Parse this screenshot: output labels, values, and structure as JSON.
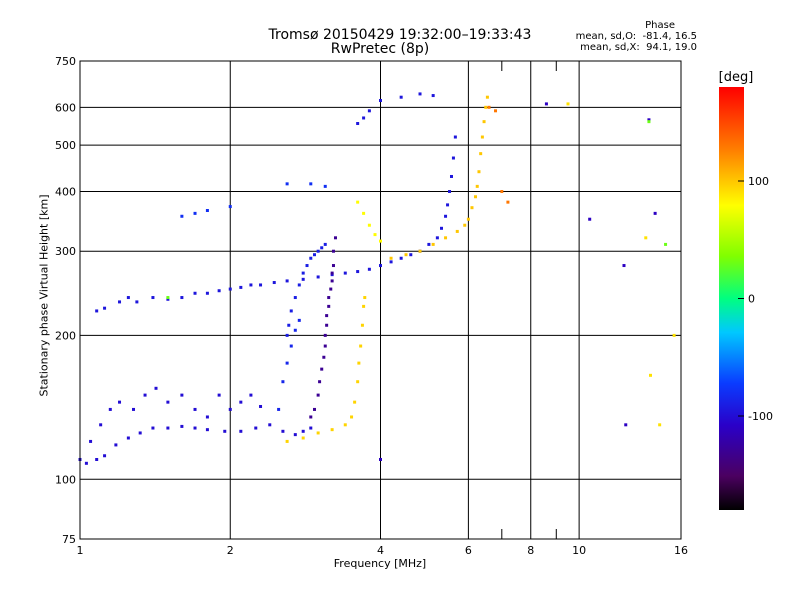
{
  "chart_data": {
    "type": "scatter",
    "title": "Tromsø 20150429 19:32:00–19:33:43",
    "subtitle": "RwPretec (8p)",
    "xlabel": "Frequency [MHz]",
    "ylabel": "Stationary phase Virtual Height [km]",
    "x_scale": "log",
    "y_scale": "log",
    "xlim": [
      1,
      16
    ],
    "ylim": [
      75,
      750
    ],
    "x_ticks": [
      1,
      2,
      4,
      6,
      8,
      10,
      16
    ],
    "y_ticks": [
      75,
      100,
      200,
      300,
      400,
      500,
      600,
      750
    ],
    "grid": true,
    "stats": {
      "heading": "Phase",
      "line_o": "mean, sd,O:  -81.4, 16.5",
      "line_x": "mean, sd,X:  94.1, 19.0"
    },
    "colorbar": {
      "label": "[deg]",
      "range": [
        -180,
        180
      ],
      "ticks": [
        {
          "value": 100,
          "label": "100"
        },
        {
          "value": 0,
          "label": "0"
        },
        {
          "value": -100,
          "label": "-100"
        }
      ]
    },
    "series": [
      {
        "phase": -100,
        "points": [
          [
            1.0,
            110
          ],
          [
            1.03,
            108
          ],
          [
            1.08,
            110
          ],
          [
            1.12,
            112
          ],
          [
            1.18,
            118
          ],
          [
            1.25,
            122
          ],
          [
            1.32,
            125
          ],
          [
            1.4,
            128
          ],
          [
            1.5,
            128
          ],
          [
            1.6,
            129
          ],
          [
            1.7,
            128
          ],
          [
            1.8,
            127
          ],
          [
            1.95,
            126
          ],
          [
            2.1,
            126
          ],
          [
            2.25,
            128
          ],
          [
            2.4,
            130
          ],
          [
            2.55,
            126
          ],
          [
            2.7,
            124
          ],
          [
            2.8,
            126
          ],
          [
            2.9,
            128
          ]
        ]
      },
      {
        "phase": -100,
        "points": [
          [
            1.05,
            120
          ],
          [
            1.1,
            130
          ],
          [
            1.15,
            140
          ],
          [
            1.2,
            145
          ],
          [
            1.28,
            140
          ],
          [
            1.35,
            150
          ],
          [
            1.42,
            155
          ],
          [
            1.5,
            145
          ],
          [
            1.6,
            150
          ],
          [
            1.7,
            140
          ],
          [
            1.8,
            135
          ],
          [
            1.9,
            150
          ],
          [
            2.0,
            140
          ],
          [
            2.1,
            145
          ],
          [
            2.2,
            150
          ],
          [
            2.3,
            142
          ]
        ]
      },
      {
        "phase": -95,
        "points": [
          [
            1.08,
            225
          ],
          [
            1.12,
            228
          ],
          [
            1.2,
            235
          ],
          [
            1.25,
            240
          ],
          [
            1.3,
            235
          ],
          [
            1.4,
            240
          ],
          [
            1.5,
            238
          ],
          [
            1.6,
            240
          ],
          [
            1.7,
            245
          ],
          [
            1.8,
            245
          ],
          [
            1.9,
            248
          ],
          [
            2.0,
            250
          ],
          [
            2.1,
            252
          ],
          [
            2.2,
            255
          ],
          [
            2.3,
            255
          ],
          [
            2.45,
            258
          ],
          [
            2.6,
            260
          ],
          [
            2.8,
            262
          ],
          [
            3.0,
            265
          ],
          [
            3.2,
            268
          ],
          [
            3.4,
            270
          ],
          [
            3.6,
            272
          ],
          [
            3.8,
            275
          ],
          [
            4.0,
            280
          ],
          [
            4.2,
            285
          ],
          [
            4.4,
            290
          ],
          [
            4.6,
            295
          ],
          [
            4.8,
            300
          ],
          [
            5.0,
            310
          ],
          [
            5.2,
            320
          ],
          [
            5.3,
            335
          ],
          [
            5.4,
            355
          ],
          [
            5.45,
            375
          ],
          [
            5.5,
            400
          ],
          [
            5.55,
            430
          ],
          [
            5.6,
            470
          ],
          [
            5.65,
            520
          ]
        ]
      },
      {
        "phase": -80,
        "points": [
          [
            1.6,
            355
          ],
          [
            1.7,
            360
          ],
          [
            1.8,
            365
          ],
          [
            2.0,
            372
          ],
          [
            2.6,
            415
          ],
          [
            2.9,
            415
          ],
          [
            3.1,
            410
          ]
        ]
      },
      {
        "phase": -90,
        "points": [
          [
            2.6,
            200
          ],
          [
            2.62,
            210
          ],
          [
            2.65,
            225
          ],
          [
            2.7,
            240
          ],
          [
            2.75,
            255
          ],
          [
            2.8,
            270
          ],
          [
            2.85,
            280
          ],
          [
            2.9,
            290
          ],
          [
            2.95,
            295
          ],
          [
            3.0,
            300
          ],
          [
            3.05,
            305
          ],
          [
            3.1,
            310
          ]
        ]
      },
      {
        "phase": -130,
        "points": [
          [
            2.9,
            135
          ],
          [
            2.95,
            140
          ],
          [
            3.0,
            150
          ],
          [
            3.02,
            160
          ],
          [
            3.05,
            170
          ],
          [
            3.08,
            180
          ],
          [
            3.1,
            190
          ],
          [
            3.1,
            200
          ],
          [
            3.12,
            210
          ],
          [
            3.12,
            220
          ],
          [
            3.15,
            230
          ],
          [
            3.15,
            240
          ],
          [
            3.18,
            250
          ],
          [
            3.2,
            260
          ],
          [
            3.2,
            270
          ],
          [
            3.22,
            280
          ],
          [
            3.22,
            300
          ],
          [
            3.25,
            320
          ]
        ]
      },
      {
        "phase": -85,
        "points": [
          [
            2.5,
            140
          ],
          [
            2.55,
            160
          ],
          [
            2.6,
            175
          ],
          [
            2.65,
            190
          ],
          [
            2.7,
            205
          ],
          [
            2.75,
            215
          ]
        ]
      },
      {
        "phase": 95,
        "points": [
          [
            2.6,
            120
          ],
          [
            2.8,
            122
          ],
          [
            3.0,
            125
          ],
          [
            3.2,
            127
          ],
          [
            3.4,
            130
          ],
          [
            3.5,
            135
          ],
          [
            3.55,
            145
          ],
          [
            3.6,
            160
          ],
          [
            3.62,
            175
          ],
          [
            3.65,
            190
          ],
          [
            3.68,
            210
          ],
          [
            3.7,
            230
          ],
          [
            3.72,
            240
          ]
        ]
      },
      {
        "phase": 100,
        "points": [
          [
            4.2,
            290
          ],
          [
            4.5,
            295
          ],
          [
            4.8,
            300
          ],
          [
            5.1,
            310
          ],
          [
            5.4,
            320
          ],
          [
            5.7,
            330
          ],
          [
            5.9,
            340
          ],
          [
            6.0,
            350
          ],
          [
            6.1,
            370
          ],
          [
            6.2,
            390
          ],
          [
            6.25,
            410
          ],
          [
            6.3,
            440
          ],
          [
            6.35,
            480
          ],
          [
            6.4,
            520
          ],
          [
            6.45,
            560
          ],
          [
            6.5,
            600
          ],
          [
            6.55,
            630
          ]
        ]
      },
      {
        "phase": 80,
        "points": [
          [
            3.6,
            380
          ],
          [
            3.7,
            360
          ],
          [
            3.8,
            340
          ],
          [
            3.9,
            325
          ],
          [
            4.0,
            315
          ]
        ]
      },
      {
        "phase": -95,
        "points": [
          [
            3.6,
            555
          ],
          [
            3.7,
            570
          ],
          [
            3.8,
            590
          ],
          [
            4.0,
            620
          ],
          [
            4.4,
            630
          ],
          [
            4.8,
            640
          ],
          [
            5.1,
            635
          ]
        ]
      },
      {
        "phase": 130,
        "points": [
          [
            6.6,
            600
          ],
          [
            6.8,
            590
          ],
          [
            7.0,
            400
          ],
          [
            7.2,
            380
          ]
        ]
      },
      {
        "phase": -110,
        "points": [
          [
            8.6,
            610
          ],
          [
            10.5,
            350
          ],
          [
            12.3,
            280
          ],
          [
            13.8,
            565
          ],
          [
            14.2,
            360
          ],
          [
            12.4,
            130
          ],
          [
            4.0,
            110
          ]
        ]
      },
      {
        "phase": 90,
        "points": [
          [
            9.5,
            610
          ],
          [
            13.6,
            320
          ],
          [
            13.9,
            165
          ],
          [
            14.5,
            130
          ],
          [
            15.5,
            200
          ]
        ]
      },
      {
        "phase": 30,
        "points": [
          [
            1.5,
            240
          ],
          [
            13.8,
            560
          ],
          [
            14.9,
            310
          ]
        ]
      }
    ]
  }
}
